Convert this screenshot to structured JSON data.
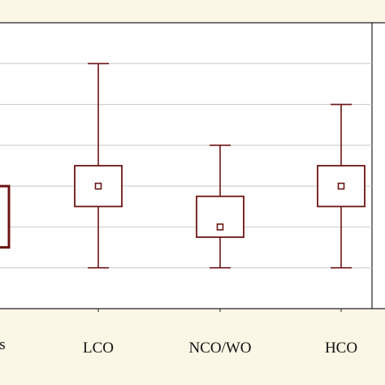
{
  "colors": {
    "background": "#fbf7e6",
    "plot_area": "#ffffff",
    "box": "#6b1414",
    "axis": "#222222",
    "grid": "#c8c8c8"
  },
  "chart_data": {
    "type": "box",
    "title": "",
    "xlabel": "",
    "ylabel": "",
    "ylim": [
      0,
      7
    ],
    "grid": true,
    "categories": [
      "ts",
      "LCO",
      "NCO/WO",
      "HCO"
    ],
    "boxes": [
      {
        "category": "ts",
        "q1": 1.5,
        "q3": 3.0,
        "partial": true
      },
      {
        "category": "LCO",
        "min": 1,
        "q1": 2.5,
        "median": 3,
        "q3": 3.5,
        "max": 6
      },
      {
        "category": "NCO/WO",
        "min": 1,
        "q1": 1.75,
        "median": 2,
        "q3": 2.75,
        "max": 4
      },
      {
        "category": "HCO",
        "min": 1,
        "q1": 2.5,
        "median": 3,
        "q3": 3.5,
        "max": 5
      }
    ]
  }
}
